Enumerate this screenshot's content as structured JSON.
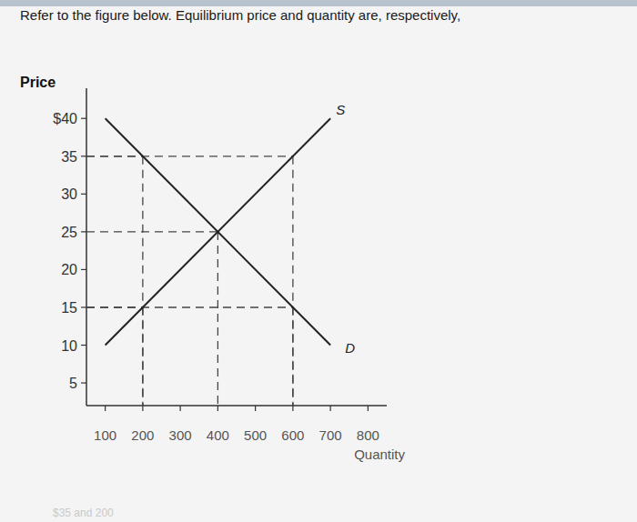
{
  "chart_data": {
    "type": "line",
    "title": "Refer to the figure below. Equilibrium price and quantity are, respectively,",
    "y_label": "Price",
    "x_label": "Quantity",
    "x": [
      100,
      700
    ],
    "series": [
      {
        "name": "S",
        "color": "#222222",
        "values": [
          10,
          40
        ]
      },
      {
        "name": "D",
        "color": "#222222",
        "values": [
          40,
          10
        ]
      }
    ],
    "guides": [
      {
        "x": 200,
        "y": 35
      },
      {
        "x": 600,
        "y": 35
      },
      {
        "x": 400,
        "y": 25
      },
      {
        "x": 200,
        "y": 15
      },
      {
        "x": 600,
        "y": 15
      }
    ],
    "xlim": [
      50,
      850
    ],
    "ylim": [
      2,
      44
    ],
    "xticks": [
      100,
      200,
      300,
      400,
      500,
      600,
      700,
      800
    ],
    "yticks": [
      5,
      10,
      15,
      20,
      25,
      30,
      35,
      {
        "value": 40,
        "label": "$40"
      }
    ],
    "grid": false,
    "annotation": "$35 and 200"
  }
}
